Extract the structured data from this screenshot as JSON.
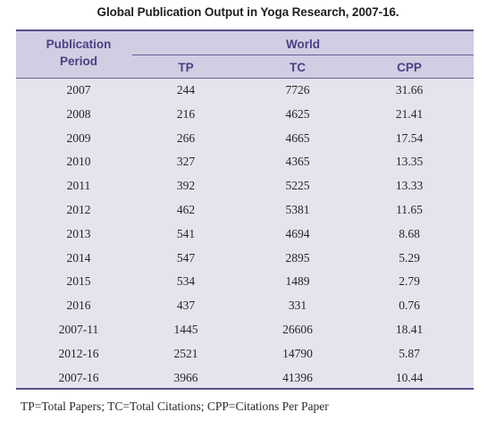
{
  "title": "Global Publication Output in Yoga Research, 2007-16.",
  "header": {
    "period_label_line1": "Publication",
    "period_label_line2": "Period",
    "group_label": "World",
    "columns": [
      "TP",
      "TC",
      "CPP"
    ]
  },
  "rows": [
    {
      "period": "2007",
      "tp": "244",
      "tc": "7726",
      "cpp": "31.66"
    },
    {
      "period": "2008",
      "tp": "216",
      "tc": "4625",
      "cpp": "21.41"
    },
    {
      "period": "2009",
      "tp": "266",
      "tc": "4665",
      "cpp": "17.54"
    },
    {
      "period": "2010",
      "tp": "327",
      "tc": "4365",
      "cpp": "13.35"
    },
    {
      "period": "2011",
      "tp": "392",
      "tc": "5225",
      "cpp": "13.33"
    },
    {
      "period": "2012",
      "tp": "462",
      "tc": "5381",
      "cpp": "11.65"
    },
    {
      "period": "2013",
      "tp": "541",
      "tc": "4694",
      "cpp": "8.68"
    },
    {
      "period": "2014",
      "tp": "547",
      "tc": "2895",
      "cpp": "5.29"
    },
    {
      "period": "2015",
      "tp": "534",
      "tc": "1489",
      "cpp": "2.79"
    },
    {
      "period": "2016",
      "tp": "437",
      "tc": "331",
      "cpp": "0.76"
    },
    {
      "period": "2007-11",
      "tp": "1445",
      "tc": "26606",
      "cpp": "18.41"
    },
    {
      "period": "2012-16",
      "tp": "2521",
      "tc": "14790",
      "cpp": "5.87"
    },
    {
      "period": "2007-16",
      "tp": "3966",
      "tc": "41396",
      "cpp": "10.44"
    }
  ],
  "footnote": "TP=Total Papers; TC=Total Citations; CPP=Citations Per Paper",
  "colors": {
    "header_bg": "#d2cde2",
    "body_bg": "#e6e3ee",
    "header_text": "#4b3f85",
    "rule": "#5a4c8c"
  }
}
